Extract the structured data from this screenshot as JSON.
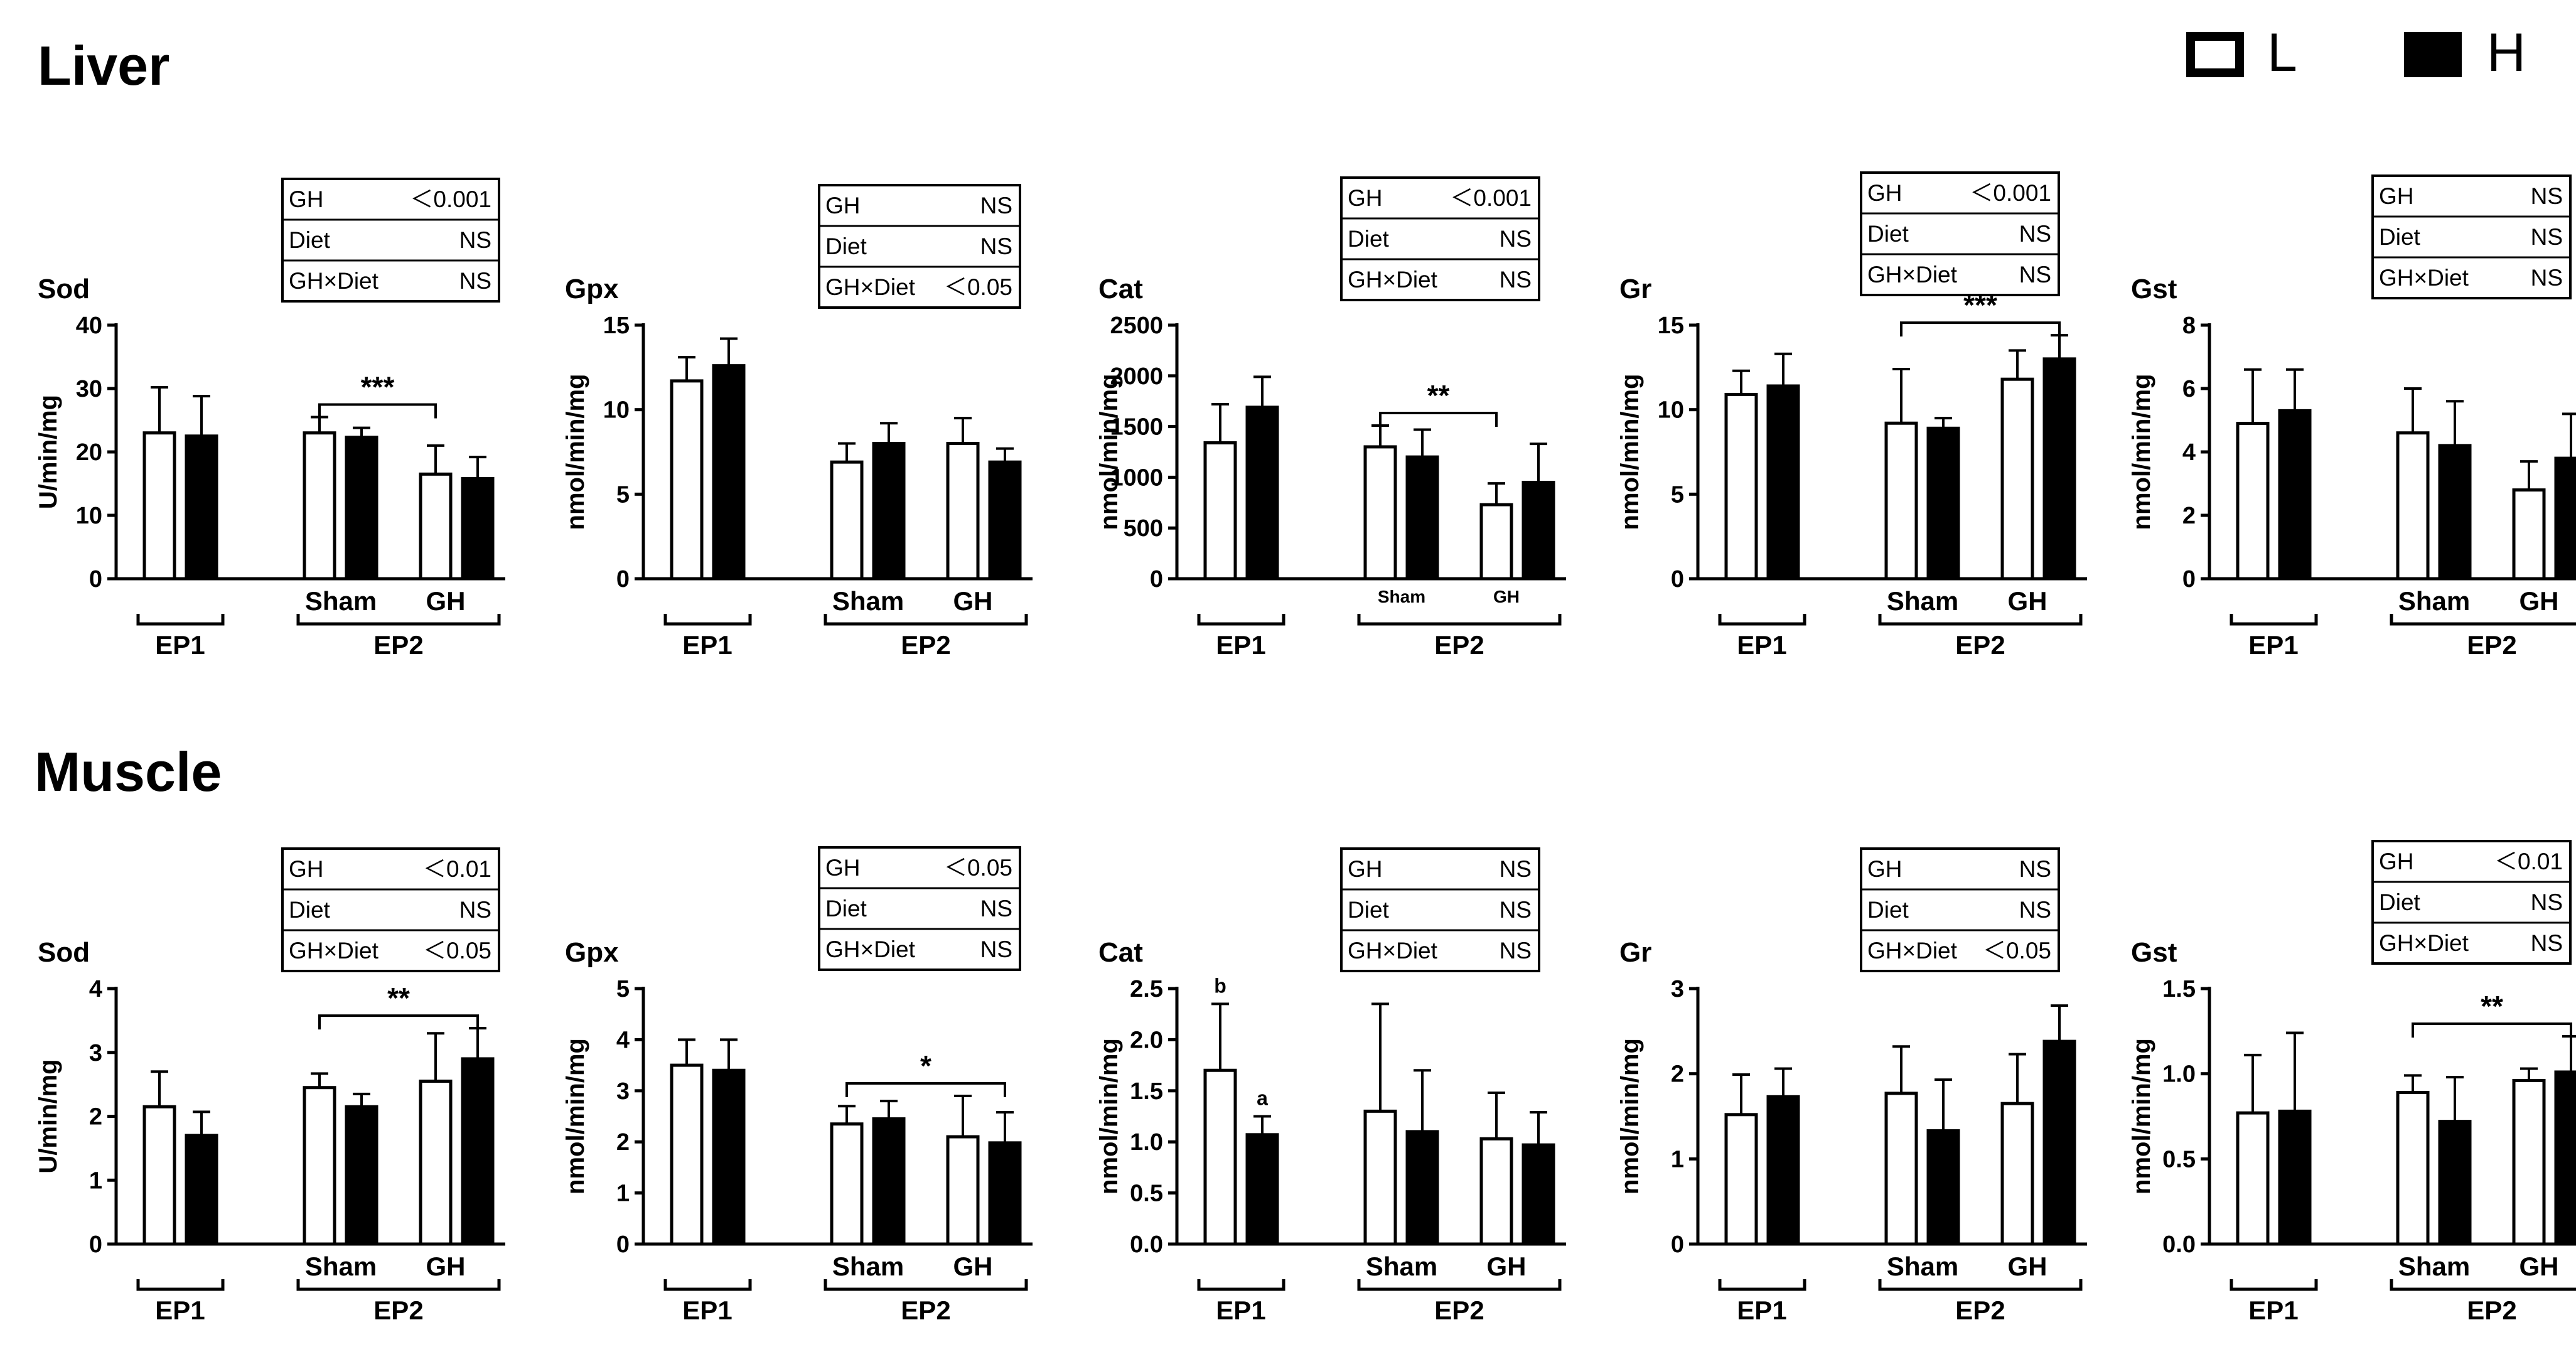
{
  "sections": {
    "liver": "Liver",
    "muscle": "Muscle"
  },
  "legend": {
    "low": "L",
    "high": "H"
  },
  "colors": {
    "low_fill": "#ffffff",
    "high_fill": "#000000",
    "stroke": "#000000"
  },
  "group_labels": {
    "ep1": "EP1",
    "ep2": "EP2",
    "sham": "Sham",
    "gh": "GH"
  },
  "chart_data": [
    {
      "type": "bar",
      "section": "Liver",
      "title": "Sod",
      "ylabel": "U/min/mg",
      "ylim": [
        0,
        40
      ],
      "yticks": [
        "0",
        "10",
        "20",
        "30",
        "40"
      ],
      "series": [
        {
          "name": "L",
          "values": [
            23,
            23,
            16.5
          ]
        },
        {
          "name": "H",
          "values": [
            22.5,
            22.3,
            15.8
          ]
        }
      ],
      "errors": {
        "L": [
          7.2,
          2.5,
          4.5
        ],
        "H": [
          6.3,
          1.5,
          3.4
        ]
      },
      "stats": [
        [
          "GH",
          "＜0.001"
        ],
        [
          "Diet",
          "NS"
        ],
        [
          "GH×Diet",
          "NS"
        ]
      ],
      "significance": "***",
      "sig_between": "L"
    },
    {
      "type": "bar",
      "section": "Liver",
      "title": "Gpx",
      "ylabel": "nmol/min/mg",
      "ylim": [
        0,
        15
      ],
      "yticks": [
        "0",
        "5",
        "10",
        "15"
      ],
      "series": [
        {
          "name": "L",
          "values": [
            11.7,
            6.9,
            8.0
          ]
        },
        {
          "name": "H",
          "values": [
            12.6,
            8.0,
            6.9
          ]
        }
      ],
      "errors": {
        "L": [
          1.4,
          1.1,
          1.5
        ],
        "H": [
          1.6,
          1.2,
          0.8
        ]
      },
      "stats": [
        [
          "GH",
          "NS"
        ],
        [
          "Diet",
          "NS"
        ],
        [
          "GH×Diet",
          "＜0.05"
        ]
      ],
      "significance": "",
      "sig_between": ""
    },
    {
      "type": "bar",
      "section": "Liver",
      "title": "Cat",
      "ylabel": "nmol/min/mg",
      "ylim": [
        0,
        2500
      ],
      "yticks": [
        "0",
        "500",
        "1000",
        "1500",
        "2000",
        "2500"
      ],
      "series": [
        {
          "name": "L",
          "values": [
            1340,
            1300,
            730
          ]
        },
        {
          "name": "H",
          "values": [
            1690,
            1200,
            950
          ]
        }
      ],
      "errors": {
        "L": [
          380,
          210,
          210
        ],
        "H": [
          300,
          270,
          380
        ]
      },
      "stats": [
        [
          "GH",
          "＜0.001"
        ],
        [
          "Diet",
          "NS"
        ],
        [
          "GH×Diet",
          "NS"
        ]
      ],
      "significance": "**",
      "sig_between": "L",
      "small_sub_labels": true
    },
    {
      "type": "bar",
      "section": "Liver",
      "title": "Gr",
      "ylabel": "nmol/min/mg",
      "ylim": [
        0,
        15
      ],
      "yticks": [
        "0",
        "5",
        "10",
        "15"
      ],
      "series": [
        {
          "name": "L",
          "values": [
            10.9,
            9.2,
            11.8
          ]
        },
        {
          "name": "H",
          "values": [
            11.4,
            8.9,
            13.0
          ]
        }
      ],
      "errors": {
        "L": [
          1.4,
          3.2,
          1.7
        ],
        "H": [
          1.9,
          0.6,
          1.4
        ]
      },
      "stats": [
        [
          "GH",
          "＜0.001"
        ],
        [
          "Diet",
          "NS"
        ],
        [
          "GH×Diet",
          "NS"
        ]
      ],
      "significance": "***",
      "sig_between": "H"
    },
    {
      "type": "bar",
      "section": "Liver",
      "title": "Gst",
      "ylabel": "nmol/min/mg",
      "ylim": [
        0,
        8
      ],
      "yticks": [
        "0",
        "2",
        "4",
        "6",
        "8"
      ],
      "series": [
        {
          "name": "L",
          "values": [
            4.9,
            4.6,
            2.8
          ]
        },
        {
          "name": "H",
          "values": [
            5.3,
            4.2,
            3.8
          ]
        }
      ],
      "errors": {
        "L": [
          1.7,
          1.4,
          0.9
        ],
        "H": [
          1.3,
          1.4,
          1.4
        ]
      },
      "stats": [
        [
          "GH",
          "NS"
        ],
        [
          "Diet",
          "NS"
        ],
        [
          "GH×Diet",
          "NS"
        ]
      ],
      "significance": "",
      "sig_between": ""
    },
    {
      "type": "bar",
      "section": "Muscle",
      "title": "Sod",
      "ylabel": "U/min/mg",
      "ylim": [
        0,
        4
      ],
      "yticks": [
        "0",
        "1",
        "2",
        "3",
        "4"
      ],
      "series": [
        {
          "name": "L",
          "values": [
            2.15,
            2.45,
            2.55
          ]
        },
        {
          "name": "H",
          "values": [
            1.7,
            2.15,
            2.9
          ]
        }
      ],
      "errors": {
        "L": [
          0.55,
          0.22,
          0.75
        ],
        "H": [
          0.37,
          0.2,
          0.48
        ]
      },
      "stats": [
        [
          "GH",
          "＜0.01"
        ],
        [
          "Diet",
          "NS"
        ],
        [
          "GH×Diet",
          "＜0.05"
        ]
      ],
      "significance": "**",
      "sig_between": "H"
    },
    {
      "type": "bar",
      "section": "Muscle",
      "title": "Gpx",
      "ylabel": "nmol/min/mg",
      "ylim": [
        0,
        5
      ],
      "yticks": [
        "0",
        "1",
        "2",
        "3",
        "4",
        "5"
      ],
      "series": [
        {
          "name": "L",
          "values": [
            3.5,
            2.35,
            2.1
          ]
        },
        {
          "name": "H",
          "values": [
            3.4,
            2.45,
            1.98
          ]
        }
      ],
      "errors": {
        "L": [
          0.5,
          0.35,
          0.8
        ],
        "H": [
          0.6,
          0.35,
          0.6
        ]
      },
      "stats": [
        [
          "GH",
          "＜0.05"
        ],
        [
          "Diet",
          "NS"
        ],
        [
          "GH×Diet",
          "NS"
        ]
      ],
      "significance": "*",
      "sig_between": "H"
    },
    {
      "type": "bar",
      "section": "Muscle",
      "title": "Cat",
      "ylabel": "nmol/min/mg",
      "ylim": [
        0,
        2.5
      ],
      "yticks": [
        "0.0",
        "0.5",
        "1.0",
        "1.5",
        "2.0",
        "2.5"
      ],
      "series": [
        {
          "name": "L",
          "values": [
            1.7,
            1.3,
            1.03
          ]
        },
        {
          "name": "H",
          "values": [
            1.07,
            1.1,
            0.97
          ]
        }
      ],
      "errors": {
        "L": [
          0.65,
          1.05,
          0.45
        ],
        "H": [
          0.18,
          0.6,
          0.32
        ]
      },
      "stats": [
        [
          "GH",
          "NS"
        ],
        [
          "Diet",
          "NS"
        ],
        [
          "GH×Diet",
          "NS"
        ]
      ],
      "significance": "",
      "sig_between": "",
      "letters": {
        "L": "b",
        "H": "a"
      }
    },
    {
      "type": "bar",
      "section": "Muscle",
      "title": "Gr",
      "ylabel": "nmol/min/mg",
      "ylim": [
        0,
        3
      ],
      "yticks": [
        "0",
        "1",
        "2",
        "3"
      ],
      "series": [
        {
          "name": "L",
          "values": [
            1.52,
            1.77,
            1.65
          ]
        },
        {
          "name": "H",
          "values": [
            1.73,
            1.33,
            2.38
          ]
        }
      ],
      "errors": {
        "L": [
          0.47,
          0.55,
          0.58
        ],
        "H": [
          0.33,
          0.6,
          0.42
        ]
      },
      "stats": [
        [
          "GH",
          "NS"
        ],
        [
          "Diet",
          "NS"
        ],
        [
          "GH×Diet",
          "＜0.05"
        ]
      ],
      "significance": "",
      "sig_between": ""
    },
    {
      "type": "bar",
      "section": "Muscle",
      "title": "Gst",
      "ylabel": "nmol/min/mg",
      "ylim": [
        0,
        1.5
      ],
      "yticks": [
        "0.0",
        "0.5",
        "1.0",
        "1.5"
      ],
      "series": [
        {
          "name": "L",
          "values": [
            0.77,
            0.89,
            0.96
          ]
        },
        {
          "name": "H",
          "values": [
            0.78,
            0.72,
            1.01
          ]
        }
      ],
      "errors": {
        "L": [
          0.34,
          0.1,
          0.07
        ],
        "H": [
          0.46,
          0.26,
          0.21
        ]
      },
      "stats": [
        [
          "GH",
          "＜0.01"
        ],
        [
          "Diet",
          "NS"
        ],
        [
          "GH×Diet",
          "NS"
        ]
      ],
      "significance": "**",
      "sig_between": "H"
    }
  ]
}
